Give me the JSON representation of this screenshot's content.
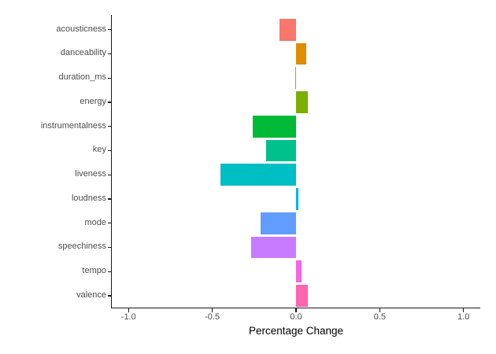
{
  "chart_data": {
    "type": "bar",
    "orientation": "horizontal",
    "title": "",
    "xlabel": "Percentage Change",
    "ylabel": "",
    "xlim": [
      -1.1,
      1.1
    ],
    "x_ticks": [
      -1.0,
      -0.5,
      0.0,
      0.5,
      1.0
    ],
    "x_tick_labels": [
      "-1.0",
      "-0.5",
      "0.0",
      "0.5",
      "1.0"
    ],
    "grid": false,
    "legend": "none",
    "categories": [
      "acousticness",
      "danceability",
      "duration_ms",
      "energy",
      "instrumentalness",
      "key",
      "liveness",
      "loudness",
      "mode",
      "speechiness",
      "tempo",
      "valence"
    ],
    "values": [
      -0.1,
      0.06,
      -0.005,
      0.07,
      -0.26,
      -0.18,
      -0.45,
      0.015,
      -0.21,
      -0.27,
      0.035,
      0.07
    ],
    "bar_colors": [
      "#F8766D",
      "#DE8C00",
      "#B79F00",
      "#7CAE00",
      "#00BA38",
      "#00C08B",
      "#00BFC4",
      "#00B4F0",
      "#619CFF",
      "#C77CFF",
      "#F564E3",
      "#FF64B0"
    ]
  },
  "style": {
    "background_color": "#FFFFFF",
    "axis_line_color": "#1A1A1A",
    "tick_label_color": "#4D4D4D",
    "axis_title_color": "#000000"
  }
}
